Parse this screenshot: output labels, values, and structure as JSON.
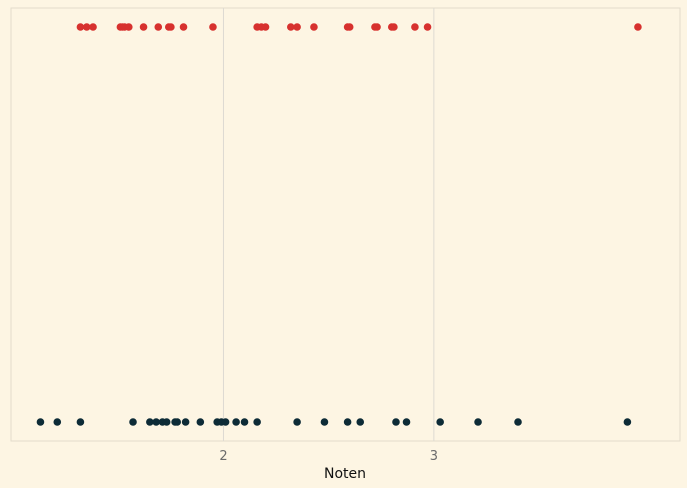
{
  "chart_data": {
    "type": "scatter",
    "title": "",
    "xlabel": "Noten",
    "ylabel": "",
    "xlim": [
      0.99,
      4.17
    ],
    "x_ticks": [
      2,
      3
    ],
    "x_tick_labels": [
      "2",
      "3"
    ],
    "grid": "vertical",
    "series": [
      {
        "color": "#d7312e",
        "row": "top",
        "x": [
          1.32,
          1.35,
          1.38,
          1.51,
          1.52,
          1.53,
          1.55,
          1.62,
          1.69,
          1.74,
          1.75,
          1.81,
          1.95,
          2.16,
          2.18,
          2.2,
          2.32,
          2.35,
          2.43,
          2.59,
          2.6,
          2.72,
          2.73,
          2.8,
          2.81,
          2.91,
          2.97,
          3.97
        ]
      },
      {
        "color": "#0d2b36",
        "row": "bottom",
        "x": [
          1.13,
          1.21,
          1.32,
          1.57,
          1.65,
          1.68,
          1.71,
          1.73,
          1.77,
          1.78,
          1.82,
          1.89,
          1.97,
          1.99,
          2.01,
          2.06,
          2.1,
          2.16,
          2.35,
          2.48,
          2.59,
          2.65,
          2.82,
          2.87,
          3.03,
          3.21,
          3.4,
          3.92
        ]
      }
    ]
  }
}
